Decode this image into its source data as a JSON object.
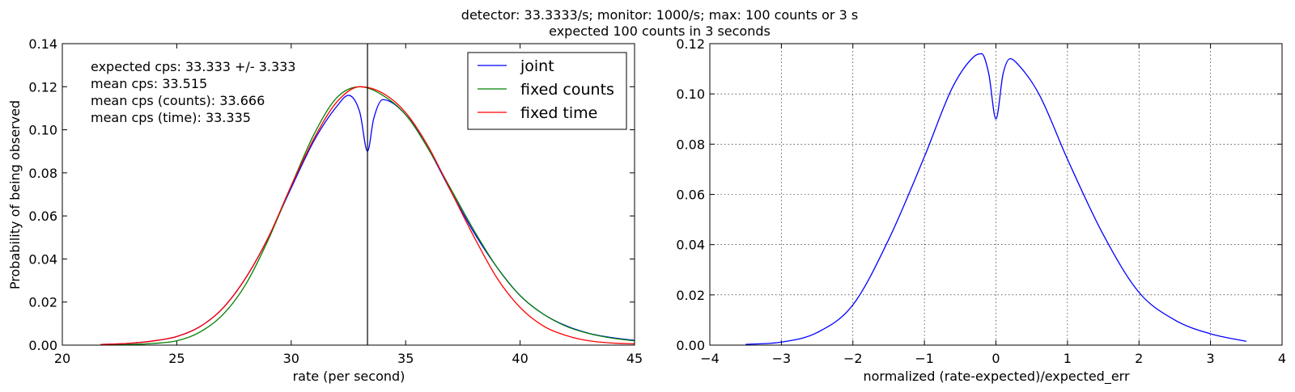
{
  "suptitle": {
    "line1": "detector: 33.3333/s;   monitor: 1000/s;  max: 100 counts or 3 s",
    "line2": "expected 100 counts in 3 seconds"
  },
  "chart_data": [
    {
      "type": "line",
      "xlabel": "rate (per second)",
      "ylabel": "Probability of being observed",
      "xlim": [
        20,
        45
      ],
      "ylim": [
        0,
        0.14
      ],
      "xticks": [
        20,
        25,
        30,
        35,
        40,
        45
      ],
      "yticks": [
        0.0,
        0.02,
        0.04,
        0.06,
        0.08,
        0.1,
        0.12,
        0.14
      ],
      "xtick_labels": [
        "20",
        "25",
        "30",
        "35",
        "40",
        "45"
      ],
      "ytick_labels": [
        "0.00",
        "0.02",
        "0.04",
        "0.06",
        "0.08",
        "0.10",
        "0.12",
        "0.14"
      ],
      "grid": false,
      "vline": 33.333,
      "annotations": [
        "expected cps: 33.333 +/- 3.333",
        "mean cps: 33.515",
        "mean cps (counts): 33.666",
        "mean cps (time): 33.335"
      ],
      "legend": {
        "position": "top-right",
        "entries": [
          {
            "label": "joint",
            "color": "#0000ff"
          },
          {
            "label": "fixed counts",
            "color": "#008000"
          },
          {
            "label": "fixed time",
            "color": "#ff0000"
          }
        ]
      },
      "series": [
        {
          "name": "joint",
          "color": "#0000ff",
          "x": [
            21.67,
            23,
            24,
            25,
            26,
            27,
            28,
            29,
            30,
            31,
            32,
            32.5,
            33,
            33.333,
            33.6,
            34,
            35,
            36,
            37,
            38,
            39,
            40,
            41,
            42,
            43,
            44,
            45
          ],
          "y": [
            0.0003,
            0.0009,
            0.002,
            0.004,
            0.0085,
            0.017,
            0.031,
            0.05,
            0.073,
            0.095,
            0.111,
            0.116,
            0.108,
            0.09,
            0.105,
            0.114,
            0.107,
            0.091,
            0.071,
            0.052,
            0.036,
            0.023,
            0.0145,
            0.009,
            0.0055,
            0.0035,
            0.0022
          ]
        },
        {
          "name": "fixed counts",
          "color": "#008000",
          "x": [
            21.67,
            23,
            24,
            25,
            26,
            27,
            28,
            29,
            30,
            31,
            32,
            33,
            34,
            35,
            36,
            37,
            38,
            39,
            40,
            41,
            42,
            43,
            44,
            45
          ],
          "y": [
            0.0001,
            0.0003,
            0.0008,
            0.002,
            0.006,
            0.014,
            0.028,
            0.049,
            0.074,
            0.098,
            0.115,
            0.12,
            0.116,
            0.107,
            0.091,
            0.072,
            0.053,
            0.036,
            0.023,
            0.0145,
            0.0088,
            0.0054,
            0.0033,
            0.002
          ]
        },
        {
          "name": "fixed time",
          "color": "#ff0000",
          "x": [
            21.67,
            23,
            24,
            25,
            26,
            27,
            28,
            29,
            30,
            31,
            32,
            33,
            34,
            35,
            36,
            37,
            38,
            39,
            40,
            41,
            42,
            43,
            44,
            45
          ],
          "y": [
            0.0003,
            0.0009,
            0.002,
            0.004,
            0.0085,
            0.017,
            0.031,
            0.05,
            0.074,
            0.096,
            0.113,
            0.12,
            0.117,
            0.108,
            0.092,
            0.071,
            0.05,
            0.031,
            0.0175,
            0.009,
            0.0045,
            0.002,
            0.001,
            0.0006
          ]
        }
      ]
    },
    {
      "type": "line",
      "xlabel": "normalized (rate-expected)/expected_err",
      "ylabel": "",
      "xlim": [
        -4,
        4
      ],
      "ylim": [
        0,
        0.12
      ],
      "xticks": [
        -4,
        -3,
        -2,
        -1,
        0,
        1,
        2,
        3,
        4
      ],
      "yticks": [
        0.0,
        0.02,
        0.04,
        0.06,
        0.08,
        0.1,
        0.12
      ],
      "xtick_labels": [
        "−4",
        "−3",
        "−2",
        "−1",
        "0",
        "1",
        "2",
        "3",
        "4"
      ],
      "ytick_labels": [
        "0.00",
        "0.02",
        "0.04",
        "0.06",
        "0.08",
        "0.10",
        "0.12"
      ],
      "grid": true,
      "series": [
        {
          "color": "#0000ff",
          "x": [
            -3.5,
            -3,
            -2.5,
            -2,
            -1.5,
            -1,
            -0.6,
            -0.3,
            -0.2,
            -0.1,
            0,
            0.1,
            0.2,
            0.3,
            0.6,
            1,
            1.5,
            2,
            2.5,
            3,
            3.5
          ],
          "y": [
            0.0003,
            0.0012,
            0.005,
            0.016,
            0.042,
            0.075,
            0.103,
            0.115,
            0.116,
            0.108,
            0.09,
            0.108,
            0.114,
            0.112,
            0.1,
            0.074,
            0.044,
            0.021,
            0.01,
            0.0045,
            0.0015
          ]
        }
      ]
    }
  ]
}
